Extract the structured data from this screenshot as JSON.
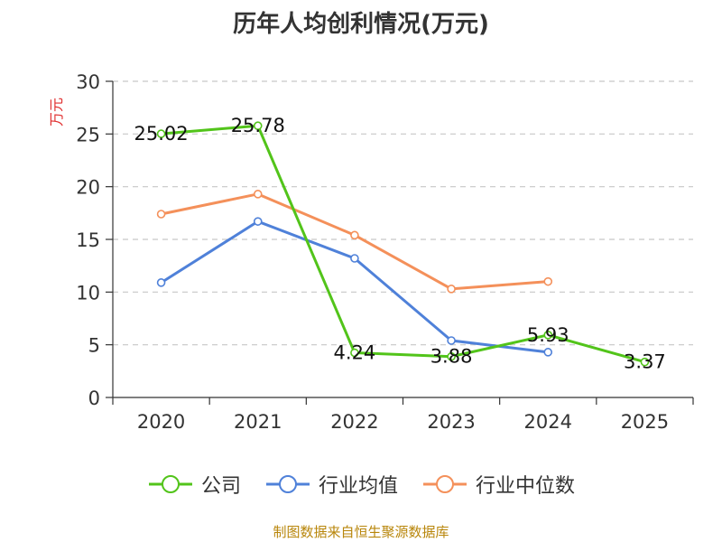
{
  "chart_data": {
    "type": "line",
    "title": "历年人均创利情况(万元)",
    "ylabel": "万元",
    "xlabel": "",
    "categories": [
      "2020",
      "2021",
      "2022",
      "2023",
      "2024",
      "2025"
    ],
    "ylim": [
      0,
      30
    ],
    "yticks": [
      0,
      5,
      10,
      15,
      20,
      25,
      30
    ],
    "grid": true,
    "legend_position": "bottom",
    "series": [
      {
        "name": "公司",
        "color": "#52c41a",
        "values": [
          25.02,
          25.78,
          4.24,
          3.88,
          5.93,
          3.37
        ],
        "labels": [
          "25.02",
          "25.78",
          "4.24",
          "3.88",
          "5.93",
          "3.37"
        ]
      },
      {
        "name": "行业均值",
        "color": "#4f81d9",
        "values": [
          10.9,
          16.7,
          13.2,
          5.4,
          4.3,
          null
        ]
      },
      {
        "name": "行业中位数",
        "color": "#f4905a",
        "values": [
          17.4,
          19.3,
          15.4,
          10.3,
          11.0,
          null
        ]
      }
    ]
  },
  "footer_note": "制图数据来自恒生聚源数据库"
}
